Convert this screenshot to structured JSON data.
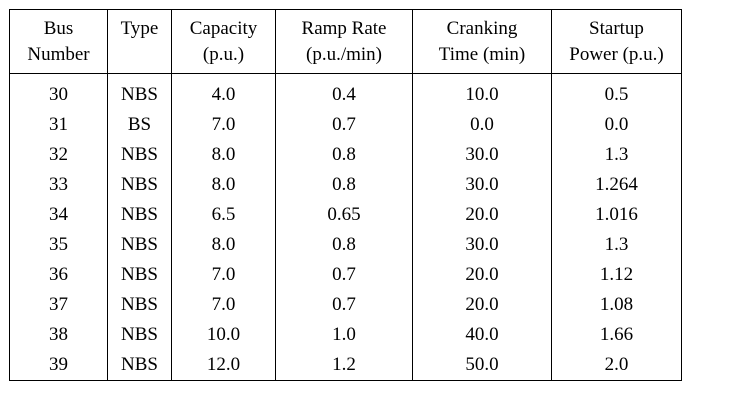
{
  "table": {
    "header_line1": [
      "Bus",
      "Type",
      "Capacity",
      "Ramp Rate",
      "Cranking",
      "Startup"
    ],
    "header_line2": [
      "Number",
      "",
      "(p.u.)",
      "(p.u./min)",
      "Time (min)",
      "Power (p.u.)"
    ],
    "rows": [
      [
        "30",
        "NBS",
        "4.0",
        "0.4",
        "10.0",
        "0.5"
      ],
      [
        "31",
        "BS",
        "7.0",
        "0.7",
        "0.0",
        "0.0"
      ],
      [
        "32",
        "NBS",
        "8.0",
        "0.8",
        "30.0",
        "1.3"
      ],
      [
        "33",
        "NBS",
        "8.0",
        "0.8",
        "30.0",
        "1.264"
      ],
      [
        "34",
        "NBS",
        "6.5",
        "0.65",
        "20.0",
        "1.016"
      ],
      [
        "35",
        "NBS",
        "8.0",
        "0.8",
        "30.0",
        "1.3"
      ],
      [
        "36",
        "NBS",
        "7.0",
        "0.7",
        "20.0",
        "1.12"
      ],
      [
        "37",
        "NBS",
        "7.0",
        "0.7",
        "20.0",
        "1.08"
      ],
      [
        "38",
        "NBS",
        "10.0",
        "1.0",
        "40.0",
        "1.66"
      ],
      [
        "39",
        "NBS",
        "12.0",
        "1.2",
        "50.0",
        "2.0"
      ]
    ]
  }
}
